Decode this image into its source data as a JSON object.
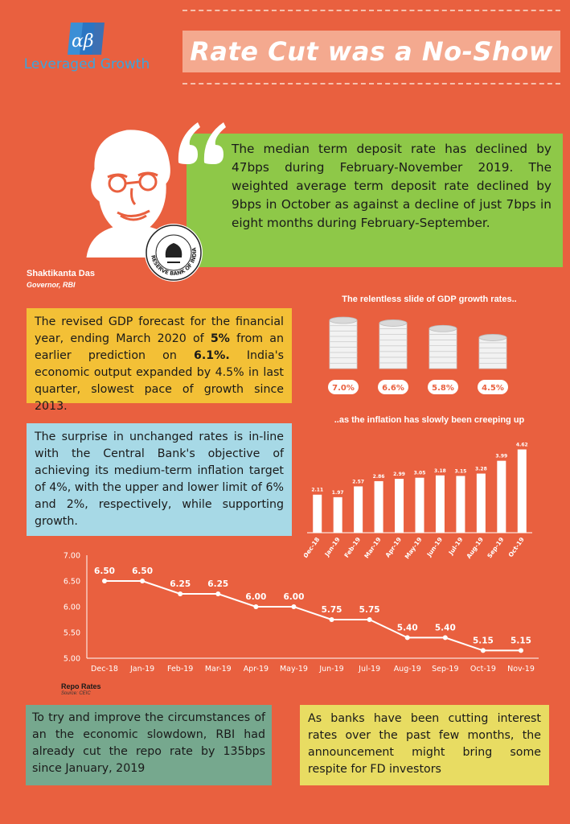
{
  "header": {
    "logo_mark": "αβ",
    "brand": "Leveraged Growth",
    "title": "Rate Cut was a No-Show"
  },
  "quote": {
    "text": "The median term deposit rate has declined by 47bps during February-November 2019. The weighted average term deposit rate declined by 9bps in October as against a decline of just 7bps in eight months during February-September."
  },
  "governor": {
    "name": "Shaktikanta Das",
    "title": "Governor, RBI",
    "seal_text": "RESERVE BANK OF INDIA"
  },
  "gdp_box": {
    "part1": "The revised GDP forecast for the financial year, ending March 2020 of ",
    "bold1": "5%",
    "part2": " from an earlier prediction on ",
    "bold2": "6.1%.",
    "part3": " India's economic output expanded by 4.5% in last quarter, slowest pace of growth since 2013."
  },
  "inflation_box": {
    "text": "The surprise in unchanged rates is in-line with the Central Bank's objective of achieving its medium-term inflation target of 4%, with the upper and lower limit of 6% and 2%, respectively, while supporting growth."
  },
  "repo_cut_box": {
    "text": "To try and improve the circumstances of an the economic slowdown, RBI had already cut the repo rate by 135bps since January, 2019"
  },
  "respite_box": {
    "text": "As banks have been cutting interest rates over the past few months, the announcement might bring some respite for FD investors"
  },
  "colors": {
    "background": "#e9603f",
    "coin": "#f2f2f2",
    "bar": "#ffffff",
    "line": "#ffffff"
  },
  "chart_data": [
    {
      "type": "bar",
      "title": "The relentless slide of GDP growth rates..",
      "values": [
        7.0,
        6.6,
        5.8,
        4.5
      ],
      "value_labels": [
        "7.0%",
        "6.6%",
        "5.8%",
        "4.5%"
      ]
    },
    {
      "type": "bar",
      "title": "..as the inflation has slowly been creeping up",
      "categories": [
        "Dec-18",
        "Jan-19",
        "Feb-19",
        "Mar-19",
        "Apr-19",
        "May-19",
        "Jun-19",
        "Jul-19",
        "Aug-19",
        "Sep-19",
        "Oct-19"
      ],
      "values": [
        2.11,
        1.97,
        2.57,
        2.86,
        2.99,
        3.05,
        3.18,
        3.15,
        3.28,
        3.99,
        4.62
      ],
      "value_labels": [
        "2.11",
        "1.97",
        "2.57",
        "2.86",
        "2.99",
        "3.05",
        "3.18",
        "3.15",
        "3.28",
        "3.99",
        "4.62"
      ],
      "ylim": [
        0,
        5
      ]
    },
    {
      "type": "line",
      "title": "Repo Rates",
      "source": "Source: CEIC",
      "categories": [
        "Dec-18",
        "Jan-19",
        "Feb-19",
        "Mar-19",
        "Apr-19",
        "May-19",
        "Jun-19",
        "Jul-19",
        "Aug-19",
        "Sep-19",
        "Oct-19",
        "Nov-19"
      ],
      "values": [
        6.5,
        6.5,
        6.25,
        6.25,
        6.0,
        6.0,
        5.75,
        5.75,
        5.4,
        5.4,
        5.15,
        5.15
      ],
      "value_labels": [
        "6.50",
        "6.50",
        "6.25",
        "6.25",
        "6.00",
        "6.00",
        "5.75",
        "5.75",
        "5.40",
        "5.40",
        "5.15",
        "5.15"
      ],
      "yticks": [
        "7.00",
        "6.50",
        "6.00",
        "5.50",
        "5.00"
      ],
      "ylim": [
        5,
        7
      ],
      "grid": false
    }
  ]
}
